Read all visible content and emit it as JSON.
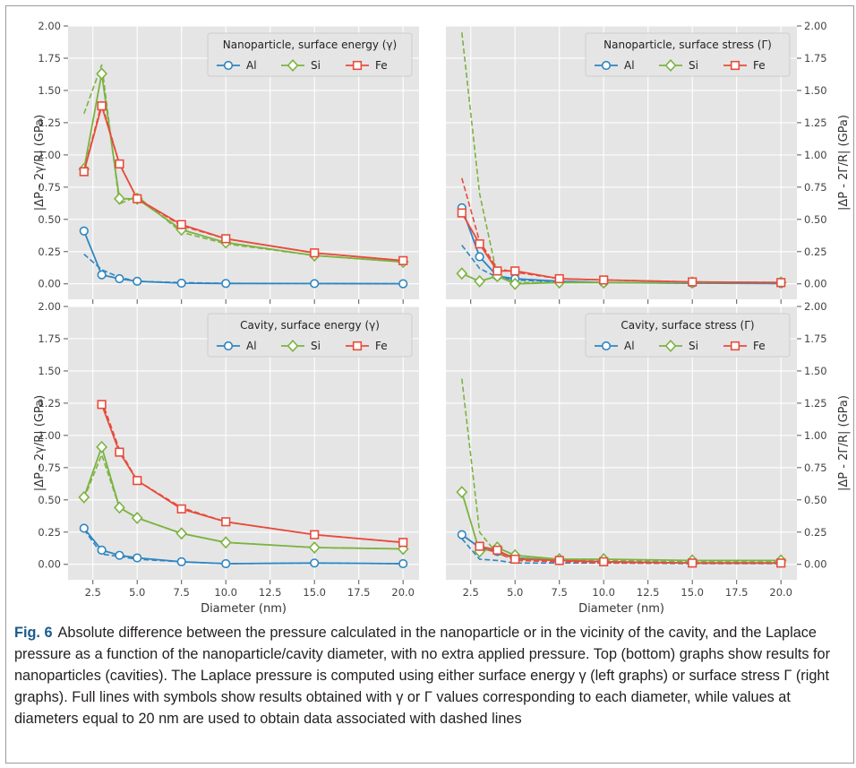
{
  "figure": {
    "colors": {
      "Al": "#2e86c1",
      "Si": "#7cb342",
      "Fe": "#e74c3c"
    },
    "x_ticks": [
      "2.5",
      "5.0",
      "7.5",
      "10.0",
      "12.5",
      "15.0",
      "17.5",
      "20.0"
    ],
    "y_ticks": [
      "0.00",
      "0.25",
      "0.50",
      "0.75",
      "1.00",
      "1.25",
      "1.50",
      "1.75",
      "2.00"
    ],
    "xlabel": "Diameter (nm)",
    "ylabel_left": "|ΔP - 2γ/R| (GPa)",
    "ylabel_right": "|ΔP - 2Γ/R| (GPa)"
  },
  "chart_data": [
    {
      "type": "line",
      "panel": "top-left",
      "title": "Nanoparticle, surface energy (γ)",
      "xlim": [
        1.1,
        20.9
      ],
      "ylim": [
        -0.12,
        2.0
      ],
      "legend_position": "top-right",
      "x": [
        2,
        3,
        4,
        5,
        7.5,
        10,
        15,
        20
      ],
      "series": [
        {
          "name": "Al",
          "marker": "circle",
          "values": [
            0.41,
            0.07,
            0.04,
            0.02,
            0.005,
            0.003,
            0.002,
            0.001
          ],
          "dashed": [
            0.23,
            0.11,
            0.05,
            0.02,
            0.01,
            0.004,
            0.002,
            0.001
          ]
        },
        {
          "name": "Si",
          "marker": "diamond",
          "values": [
            0.89,
            1.63,
            0.66,
            0.66,
            0.42,
            0.32,
            0.22,
            0.17
          ],
          "dashed": [
            1.32,
            1.7,
            0.62,
            0.68,
            0.4,
            0.31,
            0.22,
            0.17
          ]
        },
        {
          "name": "Fe",
          "marker": "square",
          "values": [
            0.87,
            1.38,
            0.93,
            0.66,
            0.46,
            0.35,
            0.24,
            0.18
          ],
          "dashed": [
            0.88,
            1.4,
            0.93,
            0.66,
            0.45,
            0.35,
            0.24,
            0.18
          ]
        }
      ]
    },
    {
      "type": "line",
      "panel": "top-right",
      "title": "Nanoparticle, surface stress (Γ)",
      "xlim": [
        1.1,
        20.9
      ],
      "ylim": [
        -0.12,
        2.0
      ],
      "legend_position": "top-right",
      "x": [
        2,
        3,
        4,
        5,
        7.5,
        10,
        15,
        20
      ],
      "series": [
        {
          "name": "Al",
          "marker": "circle",
          "values": [
            0.59,
            0.21,
            0.06,
            0.04,
            0.02,
            0.01,
            0.005,
            0.003
          ],
          "dashed": [
            0.3,
            0.12,
            0.05,
            0.03,
            0.015,
            0.01,
            0.005,
            0.003
          ]
        },
        {
          "name": "Si",
          "marker": "diamond",
          "values": [
            0.08,
            0.02,
            0.06,
            0.0,
            0.01,
            0.01,
            0.01,
            0.01
          ],
          "dashed": [
            1.95,
            0.7,
            0.06,
            0.01,
            0.01,
            0.01,
            0.01,
            0.01
          ]
        },
        {
          "name": "Fe",
          "marker": "square",
          "values": [
            0.55,
            0.31,
            0.1,
            0.1,
            0.04,
            0.03,
            0.015,
            0.01
          ],
          "dashed": [
            0.82,
            0.33,
            0.12,
            0.09,
            0.04,
            0.03,
            0.015,
            0.01
          ]
        }
      ]
    },
    {
      "type": "line",
      "panel": "bottom-left",
      "title": "Cavity, surface energy (γ)",
      "xlim": [
        1.1,
        20.9
      ],
      "ylim": [
        -0.12,
        2.0
      ],
      "legend_position": "top-right",
      "x": [
        2,
        3,
        4,
        5,
        7.5,
        10,
        15,
        20
      ],
      "series": [
        {
          "name": "Al",
          "marker": "circle",
          "values": [
            0.28,
            0.11,
            0.07,
            0.05,
            0.02,
            0.005,
            0.01,
            0.005
          ],
          "dashed": [
            0.27,
            0.08,
            0.06,
            0.04,
            0.02,
            0.005,
            0.01,
            0.005
          ]
        },
        {
          "name": "Si",
          "marker": "diamond",
          "values": [
            0.52,
            0.91,
            0.44,
            0.36,
            0.24,
            0.17,
            0.13,
            0.12
          ],
          "dashed": [
            0.51,
            0.85,
            0.44,
            0.36,
            0.24,
            0.17,
            0.13,
            0.12
          ]
        },
        {
          "name": "Fe",
          "marker": "square",
          "values": [
            null,
            1.24,
            0.87,
            0.65,
            0.43,
            0.33,
            0.23,
            0.17
          ],
          "dashed": [
            null,
            1.27,
            0.89,
            0.65,
            0.44,
            0.33,
            0.23,
            0.17
          ]
        }
      ]
    },
    {
      "type": "line",
      "panel": "bottom-right",
      "title": "Cavity, surface stress (Γ)",
      "xlim": [
        1.1,
        20.9
      ],
      "ylim": [
        -0.12,
        2.0
      ],
      "legend_position": "top-right",
      "x": [
        2,
        3,
        4,
        5,
        7.5,
        10,
        15,
        20
      ],
      "series": [
        {
          "name": "Al",
          "marker": "circle",
          "values": [
            0.23,
            0.13,
            0.1,
            0.05,
            0.03,
            0.02,
            0.01,
            0.01
          ],
          "dashed": [
            0.2,
            0.04,
            0.03,
            0.01,
            0.01,
            0.01,
            0.005,
            0.005
          ]
        },
        {
          "name": "Si",
          "marker": "diamond",
          "values": [
            0.56,
            0.1,
            0.13,
            0.07,
            0.04,
            0.04,
            0.03,
            0.03
          ],
          "dashed": [
            1.44,
            0.25,
            0.08,
            0.05,
            0.04,
            0.03,
            0.02,
            0.02
          ]
        },
        {
          "name": "Fe",
          "marker": "square",
          "values": [
            null,
            0.14,
            0.11,
            0.04,
            0.03,
            0.02,
            0.01,
            0.01
          ],
          "dashed": [
            null,
            0.13,
            0.09,
            0.03,
            0.02,
            0.01,
            0.01,
            0.01
          ]
        }
      ]
    }
  ],
  "caption": {
    "label": "Fig. 6",
    "text": "Absolute difference between the pressure calculated in the nanoparticle or in the vicinity of the cavity, and the Laplace pressure as a function of the nanoparticle/cavity diameter, with no extra applied pressure. Top (bottom) graphs show results for nanoparticles (cavities). The Laplace pressure is computed using either surface energy γ (left graphs) or surface stress Γ (right graphs). Full lines with symbols show results obtained with γ or Γ values corresponding to each diameter, while values at diameters equal to 20 nm are used to obtain data associated with dashed lines"
  }
}
